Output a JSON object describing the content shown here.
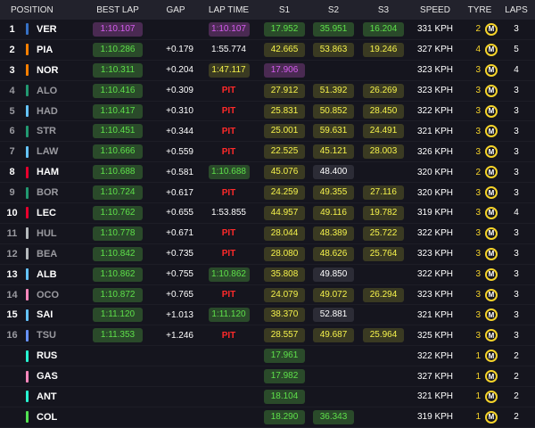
{
  "header": {
    "position": "POSITION",
    "best_lap": "BEST LAP",
    "gap": "GAP",
    "lap_time": "LAP TIME",
    "s1": "S1",
    "s2": "S2",
    "s3": "S3",
    "speed": "SPEED",
    "tyre": "TYRE",
    "laps": "LAPS"
  },
  "colors": {
    "mclaren": "#ff8000",
    "red_bull": "#3671c6",
    "aston_martin": "#229971",
    "williams": "#64c4ff",
    "rb": "#6692ff",
    "ferrari": "#e8002d",
    "haas": "#b6babd",
    "mercedes": "#27f4d2",
    "sauber": "#52e252",
    "alpine": "#ff87bc",
    "pit": "#ff2a2a",
    "personal_best": "#5ee04a",
    "fastest": "#d65df0",
    "sector_normal": "#f5f24b",
    "tyre_medium": "#f5d32a"
  },
  "drivers": [
    {
      "pos": "1",
      "team_color": "#3671c6",
      "code": "VER",
      "out": false,
      "best_lap": "1:10.107",
      "best_style": "purple",
      "gap": "",
      "last": "1:10.107",
      "last_style": "purple",
      "s1": "17.952",
      "s1_style": "green",
      "s2": "35.951",
      "s2_style": "green",
      "s3": "16.204",
      "s3_style": "green",
      "speed": "331 KPH",
      "tyre_laps": "2",
      "tyre": "M",
      "tyre_icon": "medium-tyre-icon",
      "laps": "3"
    },
    {
      "pos": "2",
      "team_color": "#ff8000",
      "code": "PIA",
      "out": false,
      "best_lap": "1:10.286",
      "best_style": "green",
      "gap": "+0.179",
      "last": "1:55.774",
      "last_style": "white",
      "s1": "42.665",
      "s1_style": "yellow",
      "s2": "53.863",
      "s2_style": "yellow",
      "s3": "19.246",
      "s3_style": "yellow",
      "speed": "327 KPH",
      "tyre_laps": "4",
      "tyre": "M",
      "tyre_icon": "medium-tyre-icon",
      "laps": "5"
    },
    {
      "pos": "3",
      "team_color": "#ff8000",
      "code": "NOR",
      "out": false,
      "best_lap": "1:10.311",
      "best_style": "green",
      "gap": "+0.204",
      "last": "1:47.117",
      "last_style": "yellow",
      "s1": "17.906",
      "s1_style": "purple",
      "s2": "",
      "s2_style": "white",
      "s3": "",
      "s3_style": "white",
      "speed": "323 KPH",
      "tyre_laps": "3",
      "tyre": "M",
      "tyre_icon": "medium-tyre-icon",
      "laps": "4"
    },
    {
      "pos": "4",
      "team_color": "#229971",
      "code": "ALO",
      "out": true,
      "best_lap": "1:10.416",
      "best_style": "green",
      "gap": "+0.309",
      "last": "PIT",
      "last_style": "pit",
      "s1": "27.912",
      "s1_style": "yellow",
      "s2": "51.392",
      "s2_style": "yellow",
      "s3": "26.269",
      "s3_style": "yellow",
      "speed": "323 KPH",
      "tyre_laps": "3",
      "tyre": "M",
      "tyre_icon": "medium-tyre-icon",
      "laps": "3"
    },
    {
      "pos": "5",
      "team_color": "#64c4ff",
      "code": "HAD",
      "out": true,
      "best_lap": "1:10.417",
      "best_style": "green",
      "gap": "+0.310",
      "last": "PIT",
      "last_style": "pit",
      "s1": "25.831",
      "s1_style": "yellow",
      "s2": "50.852",
      "s2_style": "yellow",
      "s3": "28.450",
      "s3_style": "yellow",
      "speed": "322 KPH",
      "tyre_laps": "3",
      "tyre": "M",
      "tyre_icon": "medium-tyre-icon",
      "laps": "3"
    },
    {
      "pos": "6",
      "team_color": "#229971",
      "code": "STR",
      "out": true,
      "best_lap": "1:10.451",
      "best_style": "green",
      "gap": "+0.344",
      "last": "PIT",
      "last_style": "pit",
      "s1": "25.001",
      "s1_style": "yellow",
      "s2": "59.631",
      "s2_style": "yellow",
      "s3": "24.491",
      "s3_style": "yellow",
      "speed": "321 KPH",
      "tyre_laps": "3",
      "tyre": "M",
      "tyre_icon": "medium-tyre-icon",
      "laps": "3"
    },
    {
      "pos": "7",
      "team_color": "#64c4ff",
      "code": "LAW",
      "out": true,
      "best_lap": "1:10.666",
      "best_style": "green",
      "gap": "+0.559",
      "last": "PIT",
      "last_style": "pit",
      "s1": "22.525",
      "s1_style": "yellow",
      "s2": "45.121",
      "s2_style": "yellow",
      "s3": "28.003",
      "s3_style": "yellow",
      "speed": "326 KPH",
      "tyre_laps": "3",
      "tyre": "M",
      "tyre_icon": "medium-tyre-icon",
      "laps": "3"
    },
    {
      "pos": "8",
      "team_color": "#e8002d",
      "code": "HAM",
      "out": false,
      "best_lap": "1:10.688",
      "best_style": "green",
      "gap": "+0.581",
      "last": "1:10.688",
      "last_style": "green",
      "s1": "45.076",
      "s1_style": "yellow",
      "s2": "48.400",
      "s2_style": "white",
      "s3": "",
      "s3_style": "white",
      "speed": "320 KPH",
      "tyre_laps": "2",
      "tyre": "M",
      "tyre_icon": "medium-tyre-icon",
      "laps": "3"
    },
    {
      "pos": "9",
      "team_color": "#229971",
      "code": "BOR",
      "out": true,
      "best_lap": "1:10.724",
      "best_style": "green",
      "gap": "+0.617",
      "last": "PIT",
      "last_style": "pit",
      "s1": "24.259",
      "s1_style": "yellow",
      "s2": "49.355",
      "s2_style": "yellow",
      "s3": "27.116",
      "s3_style": "yellow",
      "speed": "320 KPH",
      "tyre_laps": "3",
      "tyre": "M",
      "tyre_icon": "medium-tyre-icon",
      "laps": "3"
    },
    {
      "pos": "10",
      "team_color": "#e8002d",
      "code": "LEC",
      "out": false,
      "best_lap": "1:10.762",
      "best_style": "green",
      "gap": "+0.655",
      "last": "1:53.855",
      "last_style": "white",
      "s1": "44.957",
      "s1_style": "yellow",
      "s2": "49.116",
      "s2_style": "yellow",
      "s3": "19.782",
      "s3_style": "yellow",
      "speed": "319 KPH",
      "tyre_laps": "3",
      "tyre": "M",
      "tyre_icon": "medium-tyre-icon",
      "laps": "4"
    },
    {
      "pos": "11",
      "team_color": "#b6babd",
      "code": "HUL",
      "out": true,
      "best_lap": "1:10.778",
      "best_style": "green",
      "gap": "+0.671",
      "last": "PIT",
      "last_style": "pit",
      "s1": "28.044",
      "s1_style": "yellow",
      "s2": "48.389",
      "s2_style": "yellow",
      "s3": "25.722",
      "s3_style": "yellow",
      "speed": "322 KPH",
      "tyre_laps": "3",
      "tyre": "M",
      "tyre_icon": "medium-tyre-icon",
      "laps": "3"
    },
    {
      "pos": "12",
      "team_color": "#b6babd",
      "code": "BEA",
      "out": true,
      "best_lap": "1:10.842",
      "best_style": "green",
      "gap": "+0.735",
      "last": "PIT",
      "last_style": "pit",
      "s1": "28.080",
      "s1_style": "yellow",
      "s2": "48.626",
      "s2_style": "yellow",
      "s3": "25.764",
      "s3_style": "yellow",
      "speed": "323 KPH",
      "tyre_laps": "3",
      "tyre": "M",
      "tyre_icon": "medium-tyre-icon",
      "laps": "3"
    },
    {
      "pos": "13",
      "team_color": "#64c4ff",
      "code": "ALB",
      "out": false,
      "best_lap": "1:10.862",
      "best_style": "green",
      "gap": "+0.755",
      "last": "1:10.862",
      "last_style": "green",
      "s1": "35.808",
      "s1_style": "yellow",
      "s2": "49.850",
      "s2_style": "white",
      "s3": "",
      "s3_style": "white",
      "speed": "322 KPH",
      "tyre_laps": "3",
      "tyre": "M",
      "tyre_icon": "medium-tyre-icon",
      "laps": "3"
    },
    {
      "pos": "14",
      "team_color": "#ff87bc",
      "code": "OCO",
      "out": true,
      "best_lap": "1:10.872",
      "best_style": "green",
      "gap": "+0.765",
      "last": "PIT",
      "last_style": "pit",
      "s1": "24.079",
      "s1_style": "yellow",
      "s2": "49.072",
      "s2_style": "yellow",
      "s3": "26.294",
      "s3_style": "yellow",
      "speed": "323 KPH",
      "tyre_laps": "3",
      "tyre": "M",
      "tyre_icon": "medium-tyre-icon",
      "laps": "3"
    },
    {
      "pos": "15",
      "team_color": "#64c4ff",
      "code": "SAI",
      "out": false,
      "best_lap": "1:11.120",
      "best_style": "green",
      "gap": "+1.013",
      "last": "1:11.120",
      "last_style": "green",
      "s1": "38.370",
      "s1_style": "yellow",
      "s2": "52.881",
      "s2_style": "white",
      "s3": "",
      "s3_style": "white",
      "speed": "321 KPH",
      "tyre_laps": "3",
      "tyre": "M",
      "tyre_icon": "medium-tyre-icon",
      "laps": "3"
    },
    {
      "pos": "16",
      "team_color": "#6692ff",
      "code": "TSU",
      "out": true,
      "best_lap": "1:11.353",
      "best_style": "green",
      "gap": "+1.246",
      "last": "PIT",
      "last_style": "pit",
      "s1": "28.557",
      "s1_style": "yellow",
      "s2": "49.687",
      "s2_style": "yellow",
      "s3": "25.964",
      "s3_style": "yellow",
      "speed": "325 KPH",
      "tyre_laps": "3",
      "tyre": "M",
      "tyre_icon": "medium-tyre-icon",
      "laps": "3"
    },
    {
      "pos": "",
      "team_color": "#27f4d2",
      "code": "RUS",
      "out": false,
      "best_lap": "",
      "best_style": "white",
      "gap": "",
      "last": "",
      "last_style": "white",
      "s1": "17.961",
      "s1_style": "green",
      "s2": "",
      "s2_style": "white",
      "s3": "",
      "s3_style": "white",
      "speed": "322 KPH",
      "tyre_laps": "1",
      "tyre": "M",
      "tyre_icon": "medium-tyre-icon",
      "laps": "2"
    },
    {
      "pos": "",
      "team_color": "#ff87bc",
      "code": "GAS",
      "out": false,
      "best_lap": "",
      "best_style": "white",
      "gap": "",
      "last": "",
      "last_style": "white",
      "s1": "17.982",
      "s1_style": "green",
      "s2": "",
      "s2_style": "white",
      "s3": "",
      "s3_style": "white",
      "speed": "327 KPH",
      "tyre_laps": "1",
      "tyre": "M",
      "tyre_icon": "medium-tyre-icon",
      "laps": "2"
    },
    {
      "pos": "",
      "team_color": "#27f4d2",
      "code": "ANT",
      "out": false,
      "best_lap": "",
      "best_style": "white",
      "gap": "",
      "last": "",
      "last_style": "white",
      "s1": "18.104",
      "s1_style": "green",
      "s2": "",
      "s2_style": "white",
      "s3": "",
      "s3_style": "white",
      "speed": "321 KPH",
      "tyre_laps": "1",
      "tyre": "M",
      "tyre_icon": "medium-tyre-icon",
      "laps": "2"
    },
    {
      "pos": "",
      "team_color": "#52e252",
      "code": "COL",
      "out": false,
      "best_lap": "",
      "best_style": "white",
      "gap": "",
      "last": "",
      "last_style": "white",
      "s1": "18.290",
      "s1_style": "green",
      "s2": "36.343",
      "s2_style": "green",
      "s3": "",
      "s3_style": "white",
      "speed": "319 KPH",
      "tyre_laps": "1",
      "tyre": "M",
      "tyre_icon": "medium-tyre-icon",
      "laps": "2"
    }
  ]
}
